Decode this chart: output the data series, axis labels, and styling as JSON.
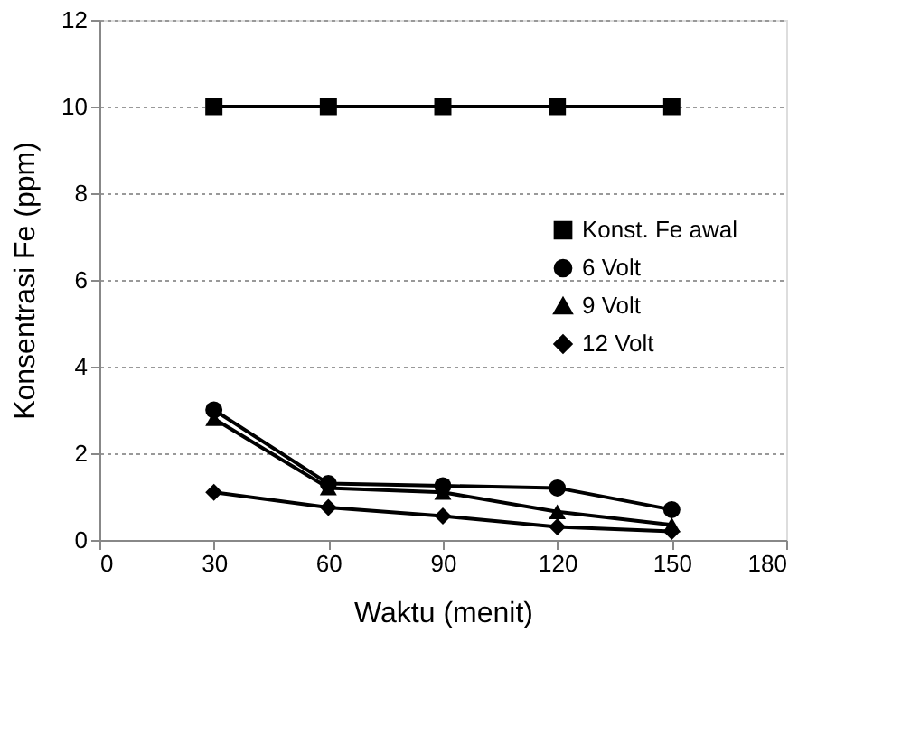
{
  "chart_data": {
    "type": "line",
    "xlabel": "Waktu (menit)",
    "ylabel": "Konsentrasi Fe (ppm)",
    "x": [
      30,
      60,
      90,
      120,
      150
    ],
    "xlim": [
      0,
      180
    ],
    "xticks": [
      0,
      30,
      60,
      90,
      120,
      150,
      180
    ],
    "ylim": [
      0,
      12
    ],
    "yticks": [
      0,
      2,
      4,
      6,
      8,
      10,
      12
    ],
    "grid": "y",
    "legend": "right",
    "line_style": "solid",
    "series": [
      {
        "name": "Konst. Fe awal",
        "color": "#000000",
        "marker": "square",
        "values": [
          10,
          10,
          10,
          10,
          10
        ]
      },
      {
        "name": "6 Volt",
        "color": "#000000",
        "marker": "circle",
        "values": [
          3.0,
          1.3,
          1.25,
          1.2,
          0.7
        ]
      },
      {
        "name": "9 Volt",
        "color": "#000000",
        "marker": "triangle",
        "values": [
          2.8,
          1.2,
          1.1,
          0.65,
          0.35
        ]
      },
      {
        "name": "12 Volt",
        "color": "#000000",
        "marker": "diamond",
        "values": [
          1.1,
          0.75,
          0.55,
          0.3,
          0.2
        ]
      }
    ]
  }
}
